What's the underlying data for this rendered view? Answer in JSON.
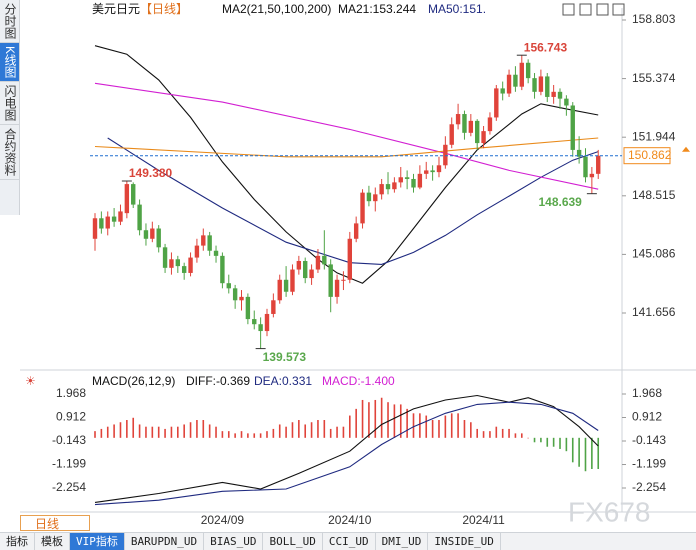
{
  "chart_data": {
    "type": "candlestick",
    "header": {
      "symbol": "美元日元",
      "period": "【日线】",
      "indicator": "MA2(21,50,100,200)",
      "ma21": "MA21:153.244",
      "ma50": "MA50:151."
    },
    "macd_header": {
      "name": "MACD(26,12,9)",
      "diff": "DIFF:-0.369",
      "dea": "DEA:0.331",
      "macd": "MACD:-1.400"
    },
    "tabs": [
      "分时图",
      "K线图",
      "闪电图",
      "合约资料"
    ],
    "period_button": "日线",
    "toolbar": [
      "指标",
      "模板",
      "VIP指标",
      "BARUPDN_UD",
      "BIAS_UD",
      "BOLL_UD",
      "CCI_UD",
      "DMI_UD",
      "INSIDE_UD"
    ],
    "watermark": "FX678",
    "up_color": "#e0433a",
    "down_color": "#4fa346",
    "ylim": [
      138.613,
      159.388
    ],
    "yticks": [
      158.803,
      155.374,
      151.944,
      148.515,
      145.086,
      141.656
    ],
    "xlabels": [
      {
        "label": "2024/09",
        "index": 20
      },
      {
        "label": "2024/10",
        "index": 40
      },
      {
        "label": "2024/11",
        "index": 61
      }
    ],
    "candles": [
      [
        146.0,
        147.5,
        145.3,
        147.2
      ],
      [
        147.2,
        147.6,
        146.3,
        146.6
      ],
      [
        146.6,
        147.6,
        146.2,
        147.3
      ],
      [
        147.3,
        147.8,
        146.7,
        147.0
      ],
      [
        147.0,
        148.0,
        146.8,
        147.6
      ],
      [
        147.5,
        149.38,
        147.2,
        149.2
      ],
      [
        149.2,
        149.3,
        147.8,
        148.0
      ],
      [
        148.0,
        148.3,
        146.2,
        146.5
      ],
      [
        146.5,
        146.9,
        145.6,
        146.0
      ],
      [
        146.0,
        147.0,
        145.8,
        146.6
      ],
      [
        146.6,
        146.8,
        145.2,
        145.5
      ],
      [
        145.5,
        145.7,
        144.0,
        144.3
      ],
      [
        144.3,
        145.2,
        143.9,
        144.8
      ],
      [
        144.8,
        145.0,
        144.0,
        144.4
      ],
      [
        144.4,
        144.6,
        143.6,
        144.0
      ],
      [
        144.0,
        145.2,
        143.8,
        144.9
      ],
      [
        144.9,
        146.0,
        144.6,
        145.6
      ],
      [
        145.6,
        146.6,
        145.3,
        146.2
      ],
      [
        146.2,
        146.4,
        145.0,
        145.3
      ],
      [
        145.3,
        145.6,
        144.6,
        145.0
      ],
      [
        145.0,
        145.2,
        143.1,
        143.4
      ],
      [
        143.4,
        143.9,
        142.8,
        143.1
      ],
      [
        143.1,
        143.3,
        141.9,
        142.4
      ],
      [
        142.4,
        143.0,
        141.8,
        142.6
      ],
      [
        142.6,
        142.8,
        141.0,
        141.3
      ],
      [
        141.3,
        141.8,
        140.7,
        141.0
      ],
      [
        141.0,
        141.4,
        139.573,
        140.6
      ],
      [
        140.6,
        141.9,
        140.3,
        141.6
      ],
      [
        141.6,
        142.8,
        141.4,
        142.4
      ],
      [
        142.4,
        143.9,
        142.2,
        143.6
      ],
      [
        143.6,
        144.4,
        142.6,
        142.9
      ],
      [
        142.9,
        144.5,
        142.7,
        144.2
      ],
      [
        144.2,
        145.0,
        143.9,
        144.7
      ],
      [
        144.7,
        144.9,
        143.4,
        143.7
      ],
      [
        143.7,
        144.5,
        143.3,
        144.2
      ],
      [
        144.2,
        145.4,
        144.0,
        145.0
      ],
      [
        145.0,
        146.5,
        144.2,
        144.5
      ],
      [
        144.5,
        144.8,
        141.7,
        142.6
      ],
      [
        142.6,
        143.9,
        142.2,
        143.6
      ],
      [
        143.6,
        144.1,
        143.0,
        143.6
      ],
      [
        143.6,
        146.4,
        143.4,
        146.0
      ],
      [
        146.0,
        147.3,
        145.8,
        146.9
      ],
      [
        146.9,
        148.9,
        146.6,
        148.7
      ],
      [
        148.7,
        149.1,
        147.9,
        148.2
      ],
      [
        148.2,
        149.0,
        147.6,
        148.6
      ],
      [
        148.6,
        149.5,
        148.3,
        149.2
      ],
      [
        149.2,
        149.9,
        148.6,
        148.9
      ],
      [
        148.9,
        149.6,
        148.7,
        149.3
      ],
      [
        149.3,
        150.2,
        149.0,
        149.6
      ],
      [
        149.6,
        150.0,
        148.9,
        149.5
      ],
      [
        149.5,
        149.8,
        148.7,
        149.0
      ],
      [
        149.0,
        150.3,
        148.9,
        149.8
      ],
      [
        149.8,
        150.5,
        149.5,
        150.0
      ],
      [
        150.0,
        150.3,
        149.4,
        149.9
      ],
      [
        149.9,
        150.8,
        149.6,
        150.3
      ],
      [
        150.3,
        152.0,
        150.1,
        151.5
      ],
      [
        151.5,
        153.1,
        151.3,
        152.7
      ],
      [
        152.7,
        153.9,
        152.4,
        153.3
      ],
      [
        153.3,
        153.5,
        151.8,
        152.2
      ],
      [
        152.2,
        153.3,
        152.0,
        152.9
      ],
      [
        152.9,
        153.0,
        151.2,
        151.6
      ],
      [
        151.6,
        152.6,
        151.3,
        152.3
      ],
      [
        152.3,
        153.4,
        152.1,
        153.1
      ],
      [
        153.1,
        155.0,
        152.9,
        154.8
      ],
      [
        154.8,
        155.2,
        154.1,
        154.5
      ],
      [
        154.5,
        155.9,
        154.3,
        155.6
      ],
      [
        155.6,
        156.1,
        154.6,
        154.9
      ],
      [
        154.9,
        156.743,
        154.7,
        156.3
      ],
      [
        156.3,
        156.5,
        155.1,
        155.4
      ],
      [
        155.4,
        155.7,
        154.2,
        154.6
      ],
      [
        154.6,
        155.9,
        154.4,
        155.5
      ],
      [
        155.5,
        155.7,
        154.0,
        154.3
      ],
      [
        154.3,
        155.0,
        153.9,
        154.6
      ],
      [
        154.6,
        154.8,
        153.6,
        154.2
      ],
      [
        154.2,
        154.4,
        153.2,
        153.8
      ],
      [
        153.8,
        154.0,
        150.8,
        151.2
      ],
      [
        151.2,
        152.0,
        150.4,
        150.8
      ],
      [
        150.8,
        151.3,
        149.3,
        149.6
      ],
      [
        149.6,
        150.2,
        148.639,
        149.8
      ],
      [
        149.8,
        151.2,
        149.5,
        150.862
      ]
    ],
    "last_color": "#f08a1c",
    "annotations": [
      {
        "label": "149.380",
        "candle": 5,
        "at": "high",
        "color": "#d9453a",
        "anchor": "start"
      },
      {
        "label": "156.743",
        "candle": 67,
        "at": "high",
        "color": "#d9453a",
        "anchor": "start"
      },
      {
        "label": "139.573",
        "candle": 26,
        "at": "low",
        "color": "#5aa84c",
        "anchor": "start"
      },
      {
        "label": "148.639",
        "candle": 78,
        "at": "low",
        "color": "#5aa84c",
        "anchor": "end"
      }
    ],
    "ma_lines": [
      {
        "color": "#111111",
        "x": [
          0,
          5,
          10,
          15,
          20,
          25,
          30,
          35,
          38,
          42,
          46,
          50,
          55,
          60,
          65,
          67,
          70,
          74,
          79
        ],
        "values": [
          157.3,
          156.8,
          155.3,
          153.1,
          150.5,
          148.3,
          146.4,
          144.8,
          144.0,
          143.4,
          144.7,
          146.6,
          149.0,
          151.2,
          152.7,
          153.3,
          153.9,
          153.6,
          153.244
        ]
      },
      {
        "color": "#1f2a80",
        "x": [
          2,
          10,
          20,
          30,
          40,
          45,
          50,
          55,
          60,
          65,
          70,
          75,
          79
        ],
        "values": [
          151.9,
          150.0,
          147.8,
          145.8,
          144.6,
          144.5,
          145.2,
          146.2,
          147.4,
          148.5,
          149.6,
          150.6,
          151.1
        ]
      },
      {
        "color": "#d21fd2",
        "x": [
          0,
          20,
          40,
          55,
          65,
          79
        ],
        "values": [
          155.1,
          154.0,
          152.4,
          151.0,
          150.0,
          148.9
        ]
      },
      {
        "color": "#e98a1a",
        "x": [
          0,
          30,
          45,
          60,
          79
        ],
        "values": [
          151.4,
          150.8,
          150.8,
          151.3,
          151.9
        ]
      }
    ],
    "macd": {
      "ylim": [
        -3.017,
        2.507
      ],
      "yticks": [
        1.968,
        0.912,
        -0.143,
        -1.199,
        -2.254
      ],
      "hist": [
        0.3,
        0.4,
        0.5,
        0.6,
        0.7,
        0.8,
        0.9,
        0.6,
        0.5,
        0.5,
        0.5,
        0.4,
        0.5,
        0.5,
        0.6,
        0.7,
        0.8,
        0.8,
        0.6,
        0.5,
        0.3,
        0.3,
        0.2,
        0.3,
        0.2,
        0.2,
        0.2,
        0.3,
        0.4,
        0.6,
        0.5,
        0.7,
        0.8,
        0.6,
        0.7,
        0.8,
        0.8,
        0.4,
        0.5,
        0.5,
        1.0,
        1.3,
        1.7,
        1.6,
        1.7,
        1.8,
        1.6,
        1.5,
        1.5,
        1.3,
        1.1,
        1.1,
        1.0,
        0.8,
        0.8,
        1.0,
        1.1,
        1.1,
        0.8,
        0.7,
        0.4,
        0.3,
        0.3,
        0.5,
        0.4,
        0.4,
        0.2,
        0.2,
        0.0,
        -0.2,
        -0.2,
        -0.4,
        -0.4,
        -0.5,
        -0.6,
        -1.1,
        -1.3,
        -1.5,
        -1.4,
        -1.4
      ],
      "lines": [
        {
          "color": "#111111",
          "x": [
            0,
            10,
            20,
            26,
            32,
            40,
            45,
            50,
            55,
            60,
            65,
            68,
            72,
            76,
            79
          ],
          "values": [
            -2.9,
            -2.5,
            -2.0,
            -2.3,
            -1.6,
            -0.6,
            0.6,
            1.3,
            1.7,
            1.9,
            1.6,
            1.8,
            1.4,
            0.5,
            -0.369
          ]
        },
        {
          "color": "#1f2a80",
          "x": [
            0,
            10,
            20,
            30,
            40,
            45,
            50,
            55,
            60,
            65,
            70,
            75,
            79
          ],
          "values": [
            -3.0,
            -2.8,
            -2.4,
            -2.3,
            -1.3,
            -0.3,
            0.5,
            1.1,
            1.5,
            1.6,
            1.5,
            1.1,
            0.331
          ]
        }
      ]
    }
  }
}
